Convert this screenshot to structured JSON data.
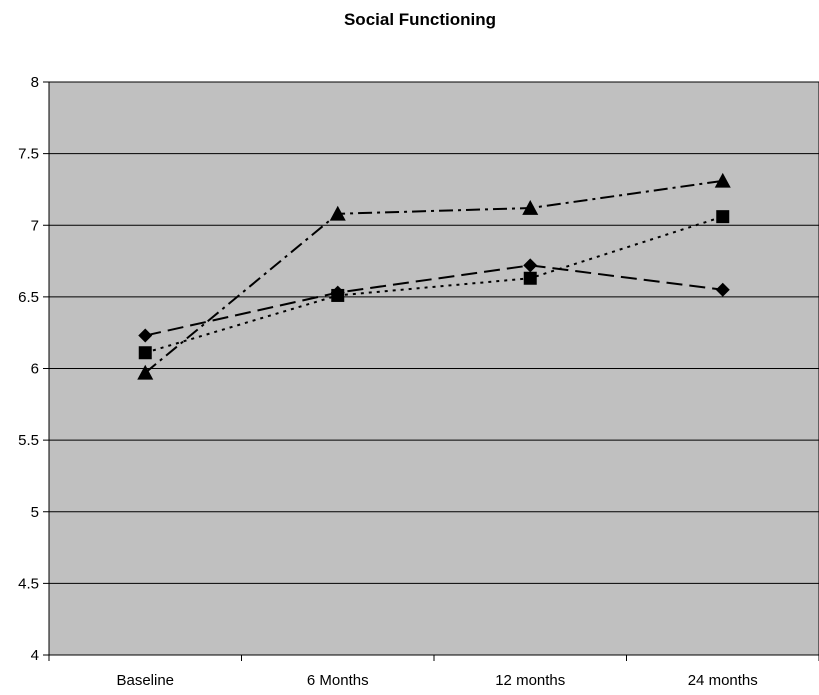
{
  "chart_data": {
    "type": "line",
    "title": "Social Functioning",
    "xlabel": "",
    "ylabel": "",
    "categories": [
      "Baseline",
      "6 Months",
      "12 months",
      "24 months"
    ],
    "ylim": [
      4,
      8
    ],
    "yticks": [
      "4",
      "4.5",
      "5",
      "5.5",
      "6",
      "6.5",
      "7",
      "7.5",
      "8"
    ],
    "grid": true,
    "legend": "none",
    "plot_background": "#c0c0c0",
    "series": [
      {
        "marker": "diamond",
        "dash": "long-dash",
        "values": [
          6.23,
          6.53,
          6.72,
          6.55
        ]
      },
      {
        "marker": "square",
        "dash": "dotted",
        "values": [
          6.11,
          6.51,
          6.63,
          7.06
        ]
      },
      {
        "marker": "triangle",
        "dash": "dash-dot",
        "values": [
          5.97,
          7.08,
          7.12,
          7.31
        ]
      }
    ]
  }
}
